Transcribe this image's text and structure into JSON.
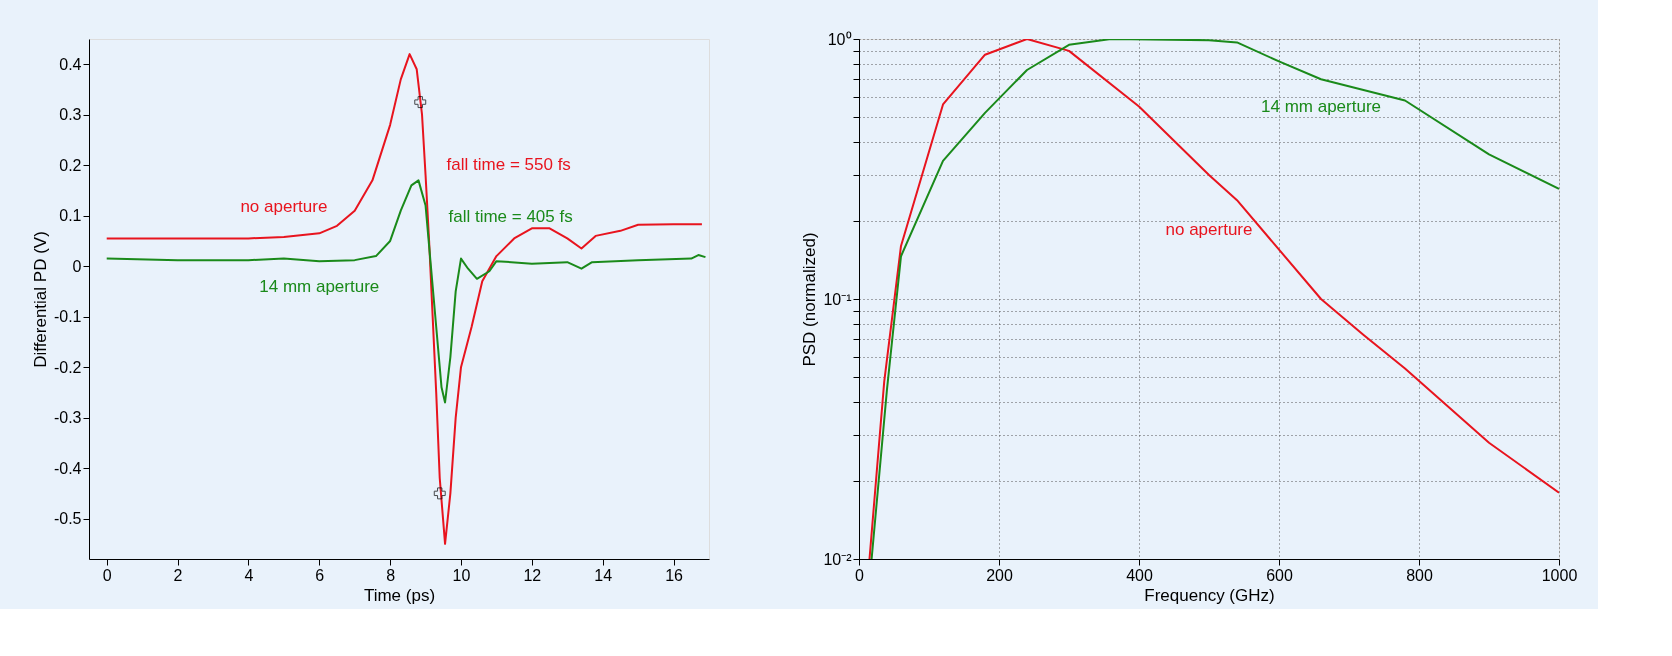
{
  "chart_data": [
    {
      "type": "line",
      "xlabel": "Time (ps)",
      "ylabel": "Differential PD (V)",
      "xlim": [
        -0.5,
        17
      ],
      "ylim": [
        -0.58,
        0.45
      ],
      "xticks": [
        0,
        2,
        4,
        6,
        8,
        10,
        12,
        14,
        16
      ],
      "yticks": [
        -0.5,
        -0.4,
        -0.3,
        -0.2,
        -0.1,
        0,
        0.1,
        0.2,
        0.3,
        0.4
      ],
      "grid": false,
      "series": [
        {
          "name": "no aperture",
          "color": "#e8141e",
          "x": [
            0,
            2,
            4,
            5,
            6,
            6.5,
            7,
            7.5,
            8,
            8.3,
            8.55,
            8.75,
            8.9,
            9.0,
            9.1,
            9.2,
            9.3,
            9.4,
            9.55,
            9.7,
            9.85,
            10.0,
            10.3,
            10.6,
            11,
            11.5,
            12,
            12.5,
            13,
            13.4,
            13.8,
            14.5,
            15,
            16,
            16.8
          ],
          "values": [
            0.055,
            0.055,
            0.055,
            0.058,
            0.065,
            0.08,
            0.11,
            0.17,
            0.28,
            0.37,
            0.42,
            0.39,
            0.3,
            0.18,
            0.05,
            -0.1,
            -0.25,
            -0.42,
            -0.55,
            -0.45,
            -0.3,
            -0.2,
            -0.12,
            -0.03,
            0.02,
            0.055,
            0.075,
            0.075,
            0.055,
            0.035,
            0.06,
            0.07,
            0.082,
            0.083,
            0.083
          ]
        },
        {
          "name": "14 mm aperture",
          "color": "#1a8a1a",
          "x": [
            0,
            2,
            4,
            5,
            6,
            7,
            7.6,
            8,
            8.3,
            8.6,
            8.8,
            9.0,
            9.15,
            9.3,
            9.45,
            9.55,
            9.7,
            9.85,
            10.0,
            10.2,
            10.45,
            10.8,
            11,
            12,
            13,
            13.4,
            13.7,
            15,
            16.5,
            16.7,
            16.9
          ],
          "values": [
            0.015,
            0.012,
            0.012,
            0.015,
            0.01,
            0.012,
            0.02,
            0.05,
            0.11,
            0.16,
            0.17,
            0.12,
            0.0,
            -0.12,
            -0.24,
            -0.27,
            -0.18,
            -0.05,
            0.015,
            -0.005,
            -0.025,
            -0.01,
            0.01,
            0.005,
            0.008,
            -0.005,
            0.008,
            0.012,
            0.015,
            0.022,
            0.018
          ]
        },
        {
          "type": "scatter",
          "color": "#000000",
          "marker": "cross",
          "x": [
            8.85,
            9.4
          ],
          "values": [
            0.325,
            -0.45
          ]
        }
      ],
      "annotations": [
        "fall time = 550 fs",
        "fall time = 405 fs"
      ]
    },
    {
      "type": "line",
      "xlabel": "Frequency (GHz)",
      "ylabel": "PSD (normalized)",
      "log": "y",
      "xlim": [
        0,
        1000
      ],
      "ylim": [
        0.01,
        1
      ],
      "xticks": [
        0,
        200,
        400,
        600,
        800,
        1000
      ],
      "yticks": [
        {
          "value": 0.01,
          "label": "10⁻²"
        },
        {
          "value": 0.02,
          "label": null
        },
        {
          "value": 0.03,
          "label": null
        },
        {
          "value": 0.04,
          "label": null
        },
        {
          "value": 0.05,
          "label": null
        },
        {
          "value": 0.06,
          "label": null
        },
        {
          "value": 0.07,
          "label": null
        },
        {
          "value": 0.08,
          "label": null
        },
        {
          "value": 0.09,
          "label": null
        },
        {
          "value": 0.1,
          "label": "10⁻¹"
        },
        {
          "value": 0.2,
          "label": null
        },
        {
          "value": 0.3,
          "label": null
        },
        {
          "value": 0.4,
          "label": null
        },
        {
          "value": 0.5,
          "label": null
        },
        {
          "value": 0.6,
          "label": null
        },
        {
          "value": 0.7,
          "label": null
        },
        {
          "value": 0.8,
          "label": null
        },
        {
          "value": 0.9,
          "label": null
        },
        {
          "value": 1,
          "label": "10⁰"
        }
      ],
      "grid": true,
      "series": [
        {
          "name": "no aperture",
          "color": "#e8141e",
          "x": [
            15,
            36,
            60,
            120,
            180,
            240,
            300,
            400,
            500,
            540,
            660,
            720,
            780,
            900,
            1000
          ],
          "values": [
            0.01,
            0.048,
            0.16,
            0.56,
            0.87,
            1.0,
            0.9,
            0.55,
            0.3,
            0.24,
            0.1,
            0.073,
            0.054,
            0.028,
            0.018
          ]
        },
        {
          "name": "14 mm aperture",
          "color": "#1a8a1a",
          "x": [
            18,
            40,
            60,
            120,
            180,
            240,
            300,
            360,
            500,
            540,
            600,
            660,
            780,
            900,
            1000
          ],
          "values": [
            0.01,
            0.045,
            0.146,
            0.34,
            0.52,
            0.76,
            0.95,
            1.0,
            0.99,
            0.97,
            0.82,
            0.7,
            0.58,
            0.36,
            0.265
          ]
        }
      ]
    }
  ]
}
